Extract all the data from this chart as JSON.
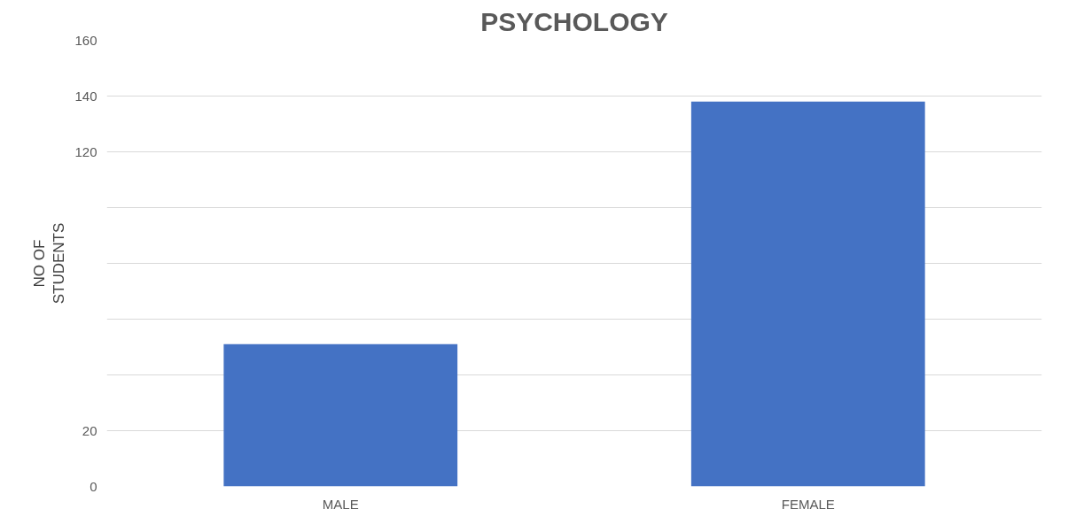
{
  "chart_data": {
    "type": "bar",
    "title": "PSYCHOLOGY",
    "ylabel": "NO OF\nSTUDENTS",
    "categories": [
      "MALE",
      "FEMALE"
    ],
    "values": [
      51,
      138
    ],
    "color": "#4472c4",
    "ylim": [
      0,
      160
    ],
    "yticks": [
      0,
      20,
      {
        "value": 40,
        "label": null
      },
      {
        "value": 60,
        "label": null
      },
      {
        "value": 80,
        "label": null
      },
      {
        "value": 100,
        "label": null
      },
      120,
      140,
      160
    ],
    "grid": "y"
  }
}
